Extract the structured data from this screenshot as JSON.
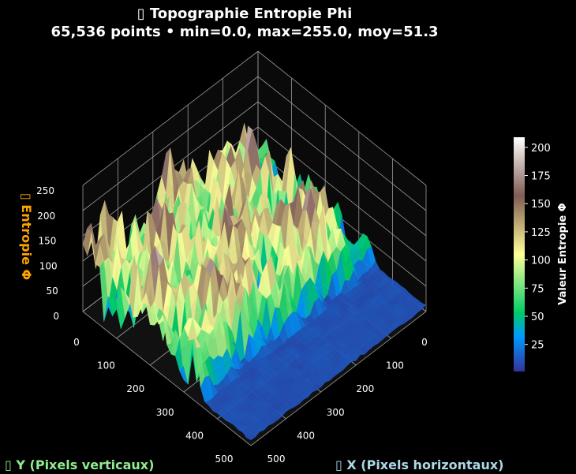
{
  "chart_data": {
    "type": "surface",
    "title": "▯ Topographie Entropie Phi",
    "subtitle": "65,536 points • min=0.0, max=255.0, moy=51.3",
    "stats": {
      "points": 65536,
      "min": 0.0,
      "max": 255.0,
      "mean": 51.3
    },
    "xlabel": "▯ X (Pixels horizontaux)",
    "ylabel": "▯ Y (Pixels verticaux)",
    "zlabel": "▯ Entropie Φ",
    "xlim": [
      0,
      500
    ],
    "ylim": [
      0,
      500
    ],
    "zlim": [
      0,
      250
    ],
    "xticks": [
      "0",
      "100",
      "200",
      "300",
      "400",
      "500"
    ],
    "yticks": [
      "0",
      "100",
      "200",
      "300",
      "400",
      "500"
    ],
    "zticks": [
      "0",
      "50",
      "100",
      "150",
      "200",
      "250"
    ],
    "colormap": "terrain",
    "colorbar": {
      "label": "Valeur Entropie Φ",
      "range": [
        1,
        209
      ],
      "ticks": [
        "25",
        "50",
        "75",
        "100",
        "125",
        "150",
        "175",
        "200"
      ]
    },
    "grid": true,
    "colors": {
      "background": "#000000",
      "xlabel": "#add8e6",
      "ylabel": "#90ee90",
      "zlabel": "#ffa500"
    }
  }
}
